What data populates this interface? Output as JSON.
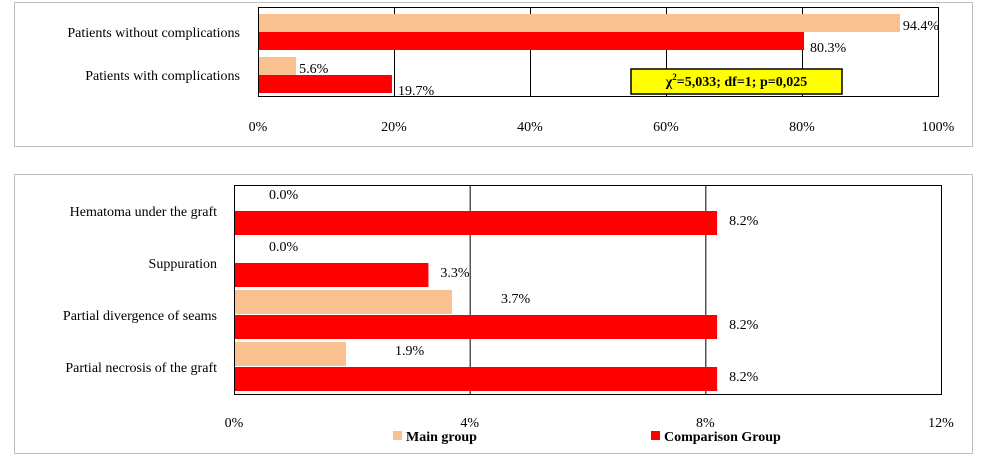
{
  "colors": {
    "main": "#F9C090",
    "comparison": "#FF0000",
    "annotation_bg": "#FFFF00",
    "panel_border": "#BFBFBF",
    "plot_border": "#000000"
  },
  "legend": {
    "main": "Main group",
    "comparison": "Comparison Group"
  },
  "chart_data": [
    {
      "type": "bar",
      "orientation": "horizontal",
      "categories": [
        "Patients without complications",
        "Patients with complications"
      ],
      "series": [
        {
          "name": "Main group",
          "values": [
            94.4,
            5.6
          ],
          "labels": [
            "94.4%",
            "5.6%"
          ]
        },
        {
          "name": "Comparison Group",
          "values": [
            80.3,
            19.7
          ],
          "labels": [
            "80.3%",
            "19.7%"
          ]
        }
      ],
      "xlim": [
        0,
        100
      ],
      "xticks": [
        "0%",
        "20%",
        "40%",
        "60%",
        "80%",
        "100%"
      ],
      "grid": true,
      "annotation": {
        "chi": "χ",
        "sup": "2",
        "text": "=5,033; df=1; p=0,025"
      }
    },
    {
      "type": "bar",
      "orientation": "horizontal",
      "categories": [
        "Hematoma under the graft",
        "Suppuration",
        "Partial divergence of seams",
        "Partial necrosis of the graft"
      ],
      "series": [
        {
          "name": "Main group",
          "values": [
            0.0,
            0.0,
            3.7,
            1.9
          ],
          "labels": [
            "0.0%",
            "0.0%",
            "3.7%",
            "1.9%"
          ]
        },
        {
          "name": "Comparison Group",
          "values": [
            8.2,
            3.3,
            8.2,
            8.2
          ],
          "labels": [
            "8.2%",
            "3.3%",
            "8.2%",
            "8.2%"
          ]
        }
      ],
      "xlim": [
        0,
        12
      ],
      "xticks": [
        "0%",
        "4%",
        "8%",
        "12%"
      ],
      "grid": true,
      "legend_position": "bottom"
    }
  ]
}
